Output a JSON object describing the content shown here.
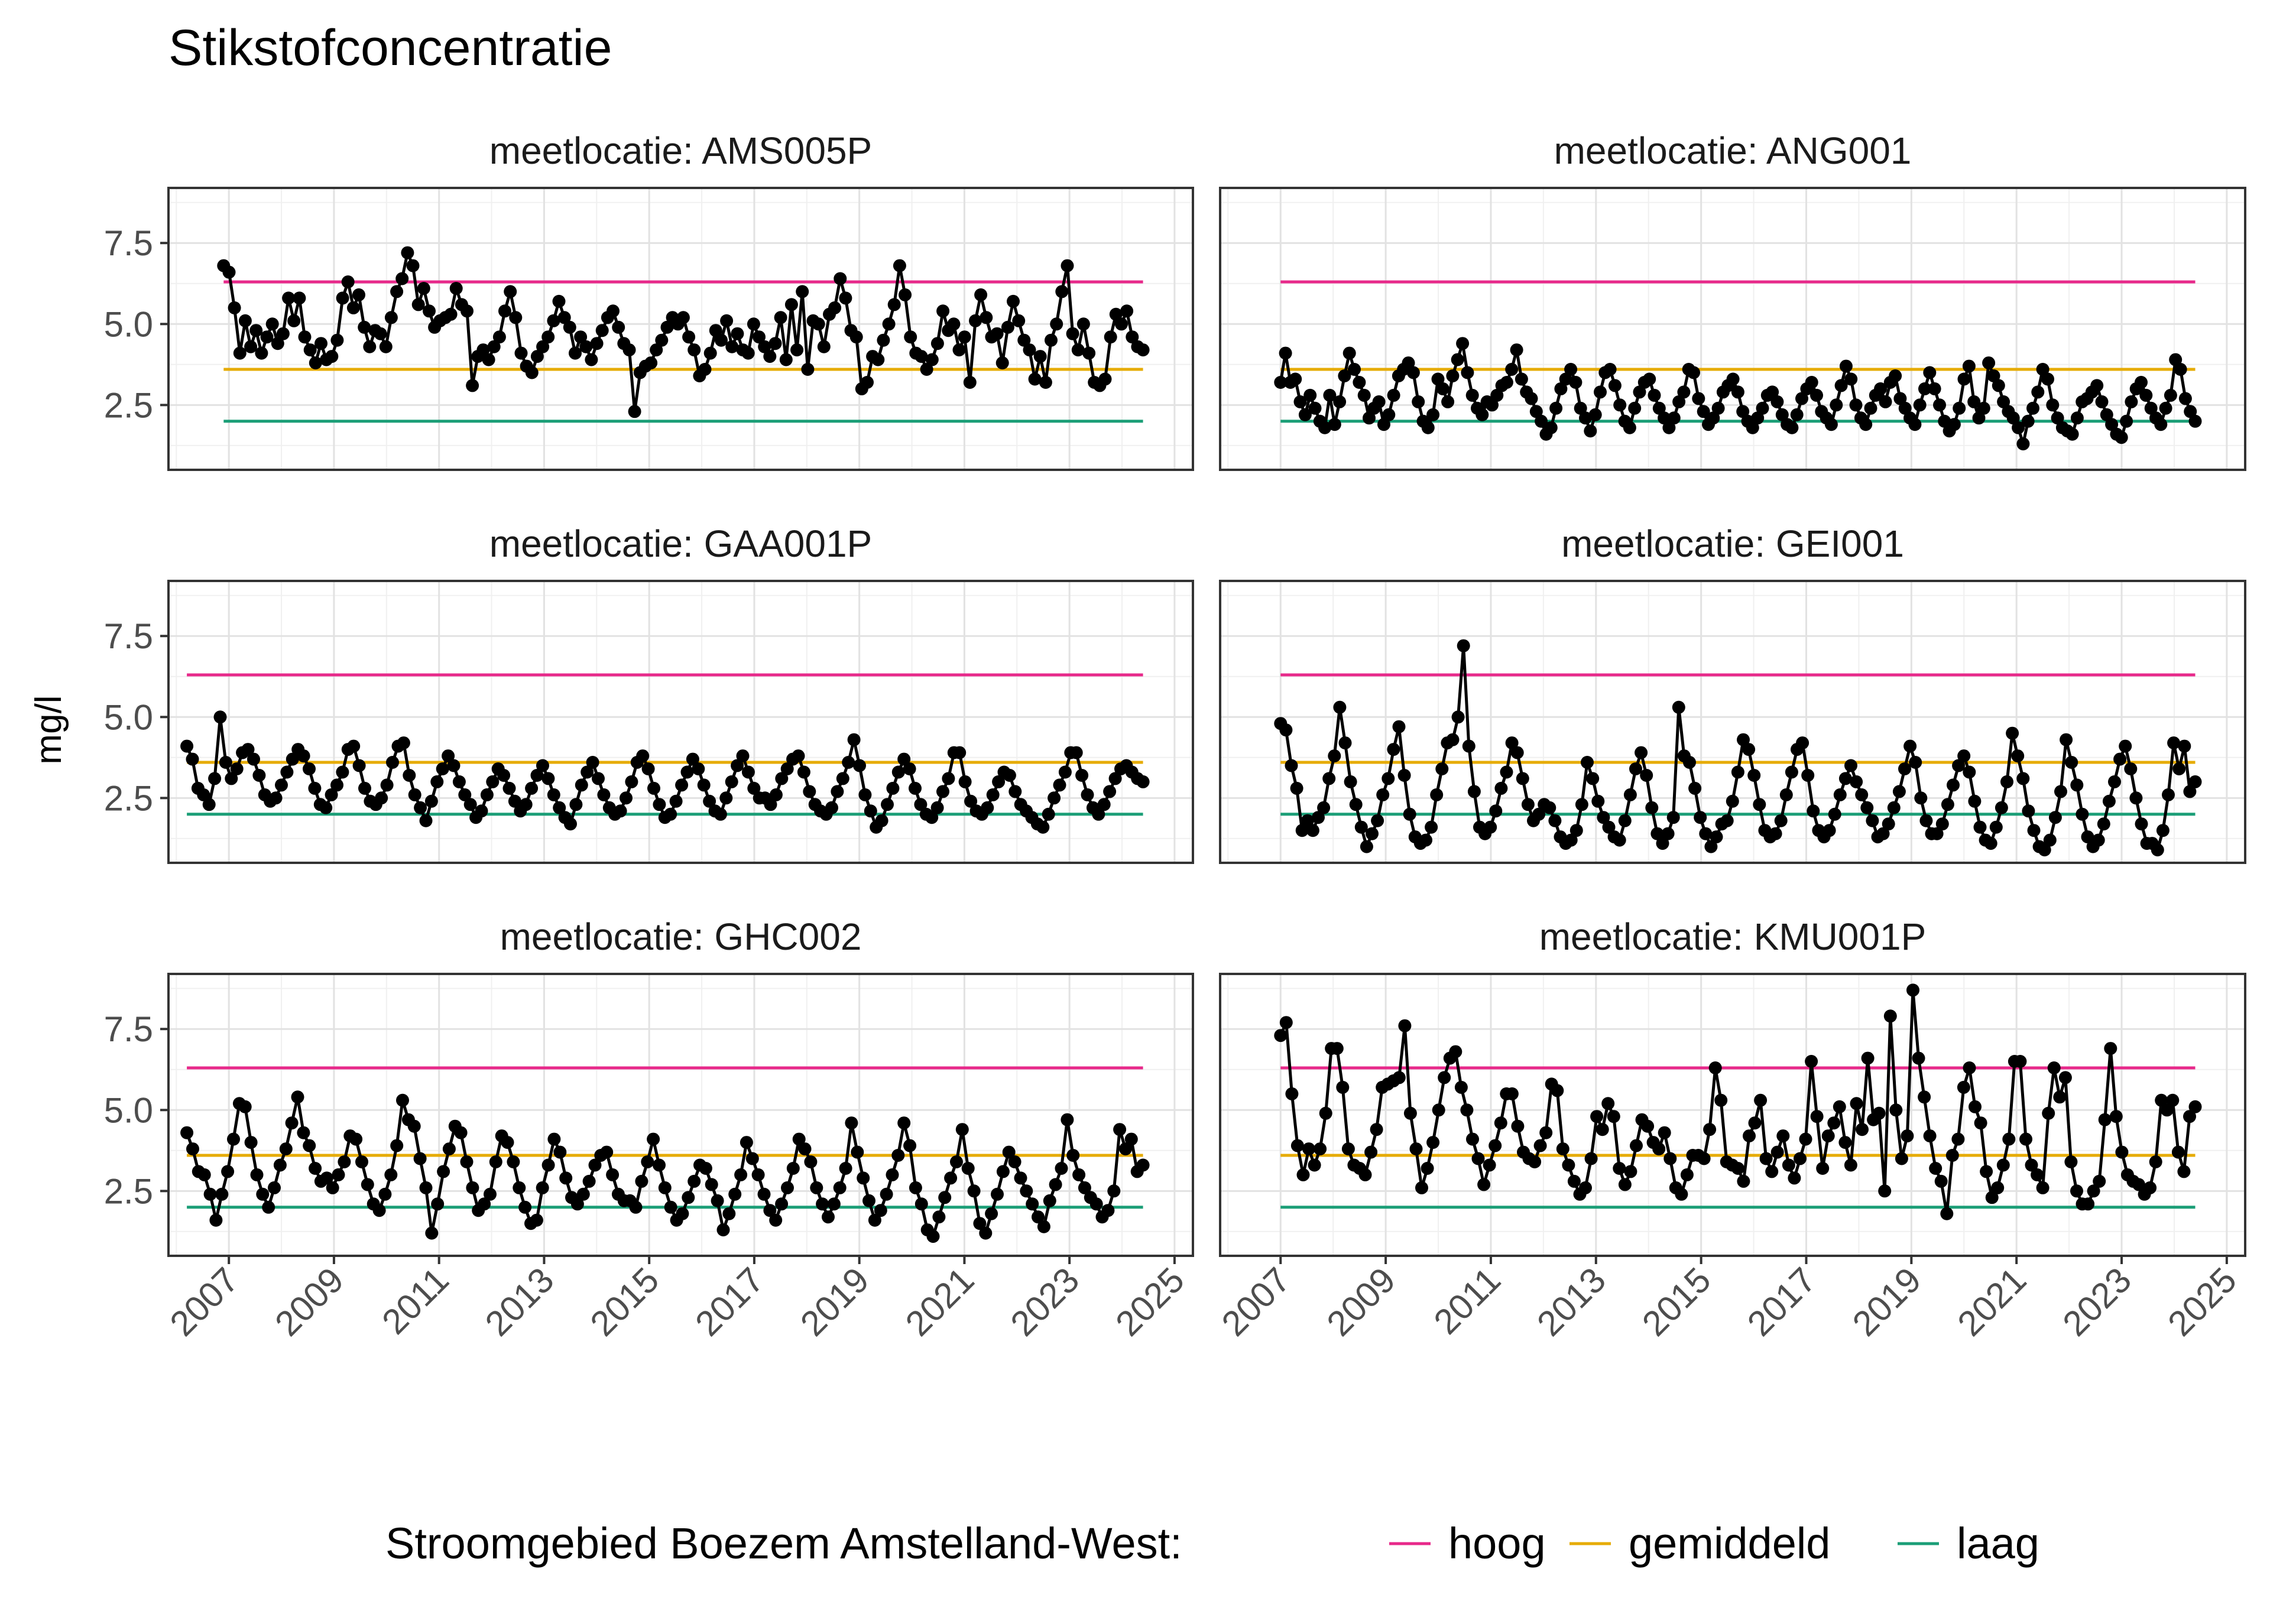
{
  "chart_data": {
    "type": "line",
    "title": "Stikstofconcentratie",
    "ylabel": "mg/l",
    "xlabel": "",
    "x_ticks": [
      "2007",
      "2009",
      "2011",
      "2013",
      "2015",
      "2017",
      "2019",
      "2021",
      "2023",
      "2025"
    ],
    "y_ticks": [
      "2.5",
      "5.0",
      "7.5"
    ],
    "ylim": [
      0.5,
      9.2
    ],
    "xlim": [
      2005.85,
      2025.35
    ],
    "grid": true,
    "legend": {
      "title": "Stroomgebied Boezem Amstelland-West:",
      "position": "bottom",
      "items": [
        {
          "label": "hoog",
          "color": "#E7298A"
        },
        {
          "label": "gemiddeld",
          "color": "#E6AB02"
        },
        {
          "label": "laag",
          "color": "#1B9E77"
        }
      ]
    },
    "reference_lines": [
      {
        "name": "hoog",
        "value": 6.3,
        "color": "#E7298A"
      },
      {
        "name": "gemiddeld",
        "value": 3.6,
        "color": "#E6AB02"
      },
      {
        "name": "laag",
        "value": 2.0,
        "color": "#1B9E77"
      }
    ],
    "panels": [
      {
        "label": "meetlocatie: AMS005P",
        "x_range": [
          2006.9,
          2024.4
        ],
        "values": [
          6.8,
          6.6,
          5.5,
          4.1,
          5.1,
          4.3,
          4.8,
          4.1,
          4.6,
          5.0,
          4.4,
          4.7,
          5.8,
          5.1,
          5.8,
          4.6,
          4.2,
          3.8,
          4.4,
          3.9,
          4.0,
          4.5,
          5.8,
          6.3,
          5.5,
          5.9,
          4.9,
          4.3,
          4.8,
          4.7,
          4.3,
          5.2,
          6.0,
          6.4,
          7.2,
          6.8,
          5.6,
          6.1,
          5.4,
          4.9,
          5.1,
          5.2,
          5.3,
          6.1,
          5.6,
          5.4,
          3.1,
          4.0,
          4.2,
          3.9,
          4.3,
          4.6,
          5.4,
          6.0,
          5.2,
          4.1,
          3.7,
          3.5,
          4.0,
          4.3,
          4.6,
          5.1,
          5.7,
          5.2,
          4.9,
          4.1,
          4.6,
          4.3,
          3.9,
          4.4,
          4.8,
          5.2,
          5.4,
          4.9,
          4.4,
          4.2,
          2.3,
          3.5,
          3.7,
          3.8,
          4.2,
          4.5,
          4.9,
          5.2,
          5.0,
          5.2,
          4.6,
          4.2,
          3.4,
          3.6,
          4.1,
          4.8,
          4.5,
          5.1,
          4.3,
          4.7,
          4.2,
          4.1,
          5.0,
          4.6,
          4.3,
          4.0,
          4.4,
          5.2,
          3.9,
          5.6,
          4.2,
          6.0,
          3.6,
          5.1,
          5.0,
          4.3,
          5.3,
          5.5,
          6.4,
          5.8,
          4.8,
          4.6,
          3.0,
          3.2,
          4.0,
          3.9,
          4.5,
          5.0,
          5.6,
          6.8,
          5.9,
          4.6,
          4.1,
          4.0,
          3.6,
          3.9,
          4.4,
          5.4,
          4.8,
          5.0,
          4.2,
          4.6,
          3.2,
          5.1,
          5.9,
          5.2,
          4.6,
          4.7,
          3.8,
          4.9,
          5.7,
          5.1,
          4.5,
          4.2,
          3.3,
          4.0,
          3.2,
          4.5,
          5.0,
          6.0,
          6.8,
          4.7,
          4.2,
          5.0,
          4.1,
          3.2,
          3.1,
          3.3,
          4.6,
          5.3,
          5.0,
          5.4,
          4.6,
          4.3,
          4.2
        ]
      },
      {
        "label": "meetlocatie: ANG001",
        "x_range": [
          2007.0,
          2024.4
        ],
        "values": [
          3.2,
          4.1,
          3.2,
          3.3,
          2.6,
          2.2,
          2.8,
          2.4,
          2.0,
          1.8,
          2.8,
          1.9,
          2.6,
          3.4,
          4.1,
          3.6,
          3.2,
          2.8,
          2.1,
          2.4,
          2.6,
          1.9,
          2.2,
          2.8,
          3.4,
          3.6,
          3.8,
          3.5,
          2.6,
          2.0,
          1.8,
          2.2,
          3.3,
          3.0,
          2.6,
          3.4,
          3.9,
          4.4,
          3.5,
          2.8,
          2.4,
          2.2,
          2.6,
          2.5,
          2.8,
          3.1,
          3.2,
          3.6,
          4.2,
          3.3,
          2.9,
          2.7,
          2.3,
          2.0,
          1.6,
          1.8,
          2.4,
          3.0,
          3.3,
          3.6,
          3.2,
          2.4,
          2.1,
          1.7,
          2.2,
          2.9,
          3.5,
          3.6,
          3.1,
          2.5,
          2.0,
          1.8,
          2.4,
          2.9,
          3.2,
          3.3,
          2.8,
          2.4,
          2.1,
          1.8,
          2.1,
          2.6,
          2.9,
          3.6,
          3.5,
          2.7,
          2.3,
          1.9,
          2.1,
          2.4,
          2.9,
          3.1,
          3.3,
          2.9,
          2.3,
          2.0,
          1.8,
          2.1,
          2.4,
          2.8,
          2.9,
          2.6,
          2.2,
          1.9,
          1.8,
          2.2,
          2.7,
          3.0,
          3.2,
          2.8,
          2.3,
          2.1,
          1.9,
          2.5,
          3.1,
          3.7,
          3.3,
          2.5,
          2.1,
          1.9,
          2.4,
          2.8,
          3.0,
          2.6,
          3.2,
          3.4,
          2.7,
          2.4,
          2.1,
          1.9,
          2.5,
          3.0,
          3.5,
          3.0,
          2.5,
          2.0,
          1.7,
          1.9,
          2.4,
          3.3,
          3.7,
          2.6,
          2.1,
          2.4,
          3.8,
          3.4,
          3.1,
          2.6,
          2.3,
          2.1,
          1.8,
          1.3,
          2.0,
          2.4,
          2.9,
          3.6,
          3.3,
          2.5,
          2.1,
          1.8,
          1.7,
          1.6,
          2.1,
          2.6,
          2.7,
          2.9,
          3.1,
          2.6,
          2.2,
          1.9,
          1.6,
          1.5,
          2.0,
          2.6,
          3.0,
          3.2,
          2.8,
          2.4,
          2.1,
          1.9,
          2.4,
          2.8,
          3.9,
          3.6,
          2.7,
          2.3,
          2.0
        ]
      },
      {
        "label": "meetlocatie: GAA001P",
        "x_range": [
          2006.2,
          2024.4
        ],
        "values": [
          4.1,
          3.7,
          2.8,
          2.6,
          2.3,
          3.1,
          5.0,
          3.6,
          3.1,
          3.4,
          3.9,
          4.0,
          3.7,
          3.2,
          2.6,
          2.4,
          2.5,
          2.9,
          3.3,
          3.7,
          4.0,
          3.8,
          3.4,
          2.8,
          2.3,
          2.2,
          2.6,
          2.9,
          3.3,
          4.0,
          4.1,
          3.5,
          2.8,
          2.4,
          2.3,
          2.5,
          2.9,
          3.6,
          4.1,
          4.2,
          3.2,
          2.6,
          2.2,
          1.8,
          2.4,
          3.0,
          3.4,
          3.8,
          3.5,
          3.0,
          2.6,
          2.3,
          1.9,
          2.1,
          2.6,
          3.0,
          3.4,
          3.2,
          2.8,
          2.4,
          2.1,
          2.3,
          2.8,
          3.2,
          3.5,
          3.1,
          2.6,
          2.2,
          1.9,
          1.7,
          2.3,
          2.9,
          3.3,
          3.6,
          3.1,
          2.6,
          2.2,
          2.0,
          2.1,
          2.5,
          3.0,
          3.6,
          3.8,
          3.4,
          2.8,
          2.3,
          1.9,
          2.0,
          2.4,
          2.9,
          3.3,
          3.7,
          3.4,
          2.9,
          2.4,
          2.1,
          2.0,
          2.5,
          3.0,
          3.5,
          3.8,
          3.3,
          2.8,
          2.5,
          2.5,
          2.3,
          2.6,
          3.1,
          3.4,
          3.7,
          3.8,
          3.3,
          2.7,
          2.3,
          2.1,
          2.0,
          2.2,
          2.7,
          3.1,
          3.6,
          4.3,
          3.5,
          2.6,
          2.1,
          1.6,
          1.8,
          2.3,
          2.8,
          3.3,
          3.7,
          3.4,
          2.8,
          2.3,
          2.0,
          1.9,
          2.2,
          2.7,
          3.1,
          3.9,
          3.9,
          3.0,
          2.4,
          2.1,
          2.0,
          2.2,
          2.6,
          3.0,
          3.3,
          3.2,
          2.7,
          2.3,
          2.1,
          1.9,
          1.7,
          1.6,
          2.0,
          2.5,
          2.9,
          3.3,
          3.9,
          3.9,
          3.2,
          2.6,
          2.2,
          2.0,
          2.3,
          2.7,
          3.1,
          3.4,
          3.5,
          3.3,
          3.1,
          3.0
        ]
      },
      {
        "label": "meetlocatie: GEI001",
        "x_range": [
          2007.0,
          2024.4
        ],
        "values": [
          4.8,
          4.6,
          3.5,
          2.8,
          1.5,
          1.8,
          1.5,
          1.9,
          2.2,
          3.1,
          3.8,
          5.3,
          4.2,
          3.0,
          2.3,
          1.6,
          1.0,
          1.4,
          1.8,
          2.6,
          3.1,
          4.0,
          4.7,
          3.2,
          2.0,
          1.3,
          1.1,
          1.2,
          1.6,
          2.6,
          3.4,
          4.2,
          4.3,
          5.0,
          7.2,
          4.1,
          2.7,
          1.6,
          1.4,
          1.6,
          2.1,
          2.8,
          3.3,
          4.2,
          3.9,
          3.1,
          2.3,
          1.8,
          2.0,
          2.3,
          2.2,
          1.8,
          1.3,
          1.1,
          1.2,
          1.5,
          2.3,
          3.6,
          3.1,
          2.4,
          1.9,
          1.6,
          1.3,
          1.2,
          1.8,
          2.6,
          3.4,
          3.9,
          3.2,
          2.2,
          1.4,
          1.1,
          1.4,
          1.9,
          5.3,
          3.8,
          3.6,
          2.8,
          1.9,
          1.4,
          1.0,
          1.3,
          1.7,
          1.8,
          2.4,
          3.3,
          4.3,
          4.0,
          3.2,
          2.3,
          1.5,
          1.3,
          1.4,
          1.8,
          2.6,
          3.3,
          4.0,
          4.2,
          3.2,
          2.1,
          1.5,
          1.3,
          1.5,
          2.0,
          2.6,
          3.1,
          3.5,
          3.0,
          2.6,
          2.2,
          1.8,
          1.3,
          1.4,
          1.7,
          2.2,
          2.7,
          3.4,
          4.1,
          3.6,
          2.5,
          1.8,
          1.4,
          1.4,
          1.7,
          2.3,
          2.9,
          3.5,
          3.8,
          3.3,
          2.4,
          1.6,
          1.2,
          1.1,
          1.6,
          2.2,
          3.0,
          4.5,
          3.8,
          3.1,
          2.1,
          1.5,
          1.0,
          0.9,
          1.2,
          1.9,
          2.7,
          4.3,
          3.6,
          2.9,
          2.0,
          1.3,
          1.0,
          1.2,
          1.7,
          2.4,
          3.0,
          3.7,
          4.1,
          3.4,
          2.5,
          1.7,
          1.1,
          1.1,
          0.9,
          1.5,
          2.6,
          4.2,
          3.4,
          4.1,
          2.7,
          3.0
        ]
      },
      {
        "label": "meetlocatie: GHC002",
        "x_range": [
          2006.2,
          2024.4
        ],
        "values": [
          4.3,
          3.8,
          3.1,
          3.0,
          2.4,
          1.6,
          2.4,
          3.1,
          4.1,
          5.2,
          5.1,
          4.0,
          3.0,
          2.4,
          2.0,
          2.6,
          3.3,
          3.8,
          4.6,
          5.4,
          4.3,
          3.9,
          3.2,
          2.8,
          2.9,
          2.6,
          3.0,
          3.4,
          4.2,
          4.1,
          3.4,
          2.7,
          2.1,
          1.9,
          2.4,
          3.0,
          3.9,
          5.3,
          4.7,
          4.5,
          3.5,
          2.6,
          1.2,
          2.1,
          3.1,
          3.8,
          4.5,
          4.3,
          3.4,
          2.6,
          1.9,
          2.1,
          2.4,
          3.4,
          4.2,
          4.0,
          3.4,
          2.6,
          2.0,
          1.5,
          1.6,
          2.6,
          3.3,
          4.1,
          3.7,
          2.9,
          2.3,
          2.1,
          2.4,
          2.8,
          3.3,
          3.6,
          3.7,
          3.0,
          2.4,
          2.2,
          2.2,
          2.0,
          2.8,
          3.4,
          4.1,
          3.3,
          2.6,
          2.0,
          1.6,
          1.8,
          2.3,
          2.8,
          3.3,
          3.2,
          2.7,
          2.2,
          1.3,
          1.8,
          2.4,
          3.0,
          4.0,
          3.5,
          3.0,
          2.4,
          1.9,
          1.6,
          2.1,
          2.6,
          3.2,
          4.1,
          3.8,
          3.4,
          2.6,
          2.1,
          1.7,
          2.1,
          2.6,
          3.2,
          4.6,
          3.7,
          2.9,
          2.2,
          1.6,
          1.9,
          2.4,
          3.0,
          3.6,
          4.6,
          3.9,
          2.6,
          2.1,
          1.3,
          1.1,
          1.7,
          2.3,
          2.9,
          3.4,
          4.4,
          3.2,
          2.5,
          1.5,
          1.2,
          1.8,
          2.4,
          3.1,
          3.7,
          3.4,
          2.9,
          2.5,
          2.1,
          1.7,
          1.4,
          2.2,
          2.7,
          3.2,
          4.7,
          3.6,
          3.0,
          2.6,
          2.3,
          2.1,
          1.7,
          1.9,
          2.5,
          4.4,
          3.8,
          4.1,
          3.1,
          3.3
        ]
      },
      {
        "label": "meetlocatie: KMU001P",
        "x_range": [
          2007.0,
          2024.4
        ],
        "values": [
          7.3,
          7.7,
          5.5,
          3.9,
          3.0,
          3.8,
          3.3,
          3.8,
          4.9,
          6.9,
          6.9,
          5.7,
          3.8,
          3.3,
          3.2,
          3.0,
          3.7,
          4.4,
          5.7,
          5.8,
          5.9,
          6.0,
          7.6,
          4.9,
          3.8,
          2.6,
          3.2,
          4.0,
          5.0,
          6.0,
          6.6,
          6.8,
          5.7,
          5.0,
          4.1,
          3.5,
          2.7,
          3.3,
          3.9,
          4.6,
          5.5,
          5.5,
          4.5,
          3.7,
          3.5,
          3.4,
          3.9,
          4.3,
          5.8,
          5.6,
          3.8,
          3.3,
          2.8,
          2.4,
          2.6,
          3.5,
          4.8,
          4.4,
          5.2,
          4.8,
          3.2,
          2.7,
          3.1,
          3.9,
          4.7,
          4.5,
          4.0,
          3.8,
          4.3,
          3.5,
          2.6,
          2.4,
          3.0,
          3.6,
          3.6,
          3.5,
          4.4,
          6.3,
          5.3,
          3.4,
          3.3,
          3.2,
          2.8,
          4.2,
          4.6,
          5.3,
          3.5,
          3.1,
          3.7,
          4.2,
          3.3,
          2.9,
          3.5,
          4.1,
          6.5,
          4.8,
          3.2,
          4.2,
          4.6,
          5.1,
          4.0,
          3.3,
          5.2,
          4.4,
          6.6,
          4.7,
          4.9,
          2.5,
          7.9,
          5.0,
          3.5,
          4.2,
          8.7,
          6.6,
          5.4,
          4.2,
          3.2,
          2.8,
          1.8,
          3.6,
          4.1,
          5.7,
          6.3,
          5.1,
          4.6,
          3.1,
          2.3,
          2.6,
          3.3,
          4.1,
          6.5,
          6.5,
          4.1,
          3.3,
          3.0,
          2.6,
          4.9,
          6.3,
          5.4,
          6.0,
          3.4,
          2.5,
          2.1,
          2.1,
          2.5,
          2.8,
          4.7,
          6.9,
          4.8,
          3.7,
          3.0,
          2.8,
          2.7,
          2.4,
          2.6,
          3.4,
          5.3,
          5.0,
          5.3,
          3.7,
          3.1,
          4.8,
          5.1
        ]
      }
    ]
  }
}
